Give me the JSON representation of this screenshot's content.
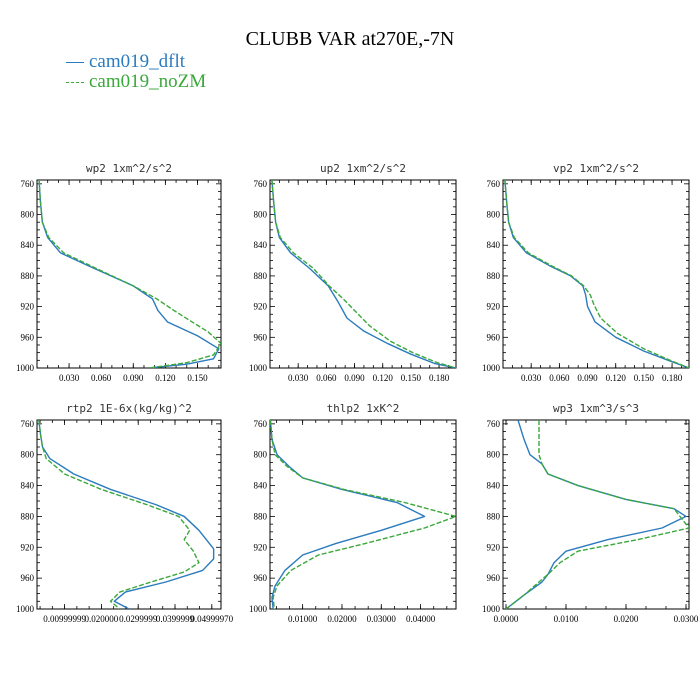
{
  "title": "CLUBB VAR at270E,-7N",
  "colors": {
    "dflt": "#2b7bbe",
    "noZM": "#3aa83a"
  },
  "legend": [
    {
      "label": "cam019_dflt",
      "color": "#2b7bbe",
      "dash": "solid"
    },
    {
      "label": "cam019_noZM",
      "color": "#3aa83a",
      "dash": "dashed"
    }
  ],
  "chart_data": [
    {
      "type": "line",
      "title": "wp2  1xm^2/s^2",
      "xlim": [
        0,
        0.172
      ],
      "ylim": [
        1000,
        755
      ],
      "y_reversed": true,
      "xticks": [
        0.03,
        0.06,
        0.09,
        0.12,
        0.15
      ],
      "xtick_labels": [
        "0.030",
        "0.060",
        "0.090",
        "0.120",
        "0.150"
      ],
      "yticks": [
        760,
        800,
        840,
        880,
        920,
        960,
        1000
      ],
      "ytick_labels": [
        "760",
        "800",
        "840",
        "880",
        "920",
        "960",
        "1000"
      ],
      "series": [
        {
          "color_key": "dflt",
          "dash": false,
          "points": [
            [
              0.002,
              755
            ],
            [
              0.003,
              780
            ],
            [
              0.005,
              810
            ],
            [
              0.01,
              830
            ],
            [
              0.022,
              850
            ],
            [
              0.05,
              868
            ],
            [
              0.09,
              893
            ],
            [
              0.108,
              910
            ],
            [
              0.113,
              925
            ],
            [
              0.122,
              940
            ],
            [
              0.15,
              958
            ],
            [
              0.17,
              975
            ],
            [
              0.165,
              988
            ],
            [
              0.14,
              995
            ],
            [
              0.105,
              1000
            ]
          ]
        },
        {
          "color_key": "noZM",
          "dash": true,
          "points": [
            [
              0.002,
              755
            ],
            [
              0.003,
              780
            ],
            [
              0.005,
              810
            ],
            [
              0.011,
              830
            ],
            [
              0.025,
              850
            ],
            [
              0.055,
              870
            ],
            [
              0.09,
              893
            ],
            [
              0.112,
              910
            ],
            [
              0.128,
              925
            ],
            [
              0.145,
              940
            ],
            [
              0.16,
              953
            ],
            [
              0.172,
              968
            ],
            [
              0.165,
              983
            ],
            [
              0.14,
              993
            ],
            [
              0.105,
              1000
            ]
          ]
        }
      ]
    },
    {
      "type": "line",
      "title": "up2  1xm^2/s^2",
      "xlim": [
        0,
        0.198
      ],
      "ylim": [
        1000,
        755
      ],
      "y_reversed": true,
      "xticks": [
        0.03,
        0.06,
        0.09,
        0.12,
        0.15,
        0.18
      ],
      "xtick_labels": [
        "0.030",
        "0.060",
        "0.090",
        "0.120",
        "0.150",
        "0.180"
      ],
      "yticks": [
        760,
        800,
        840,
        880,
        920,
        960,
        1000
      ],
      "ytick_labels": [
        "760",
        "800",
        "840",
        "880",
        "920",
        "960",
        "1000"
      ],
      "series": [
        {
          "color_key": "dflt",
          "dash": false,
          "points": [
            [
              0.002,
              755
            ],
            [
              0.004,
              785
            ],
            [
              0.006,
              810
            ],
            [
              0.01,
              830
            ],
            [
              0.022,
              850
            ],
            [
              0.042,
              870
            ],
            [
              0.062,
              893
            ],
            [
              0.073,
              915
            ],
            [
              0.082,
              935
            ],
            [
              0.1,
              952
            ],
            [
              0.125,
              968
            ],
            [
              0.15,
              982
            ],
            [
              0.175,
              994
            ],
            [
              0.198,
              1000
            ]
          ]
        },
        {
          "color_key": "noZM",
          "dash": true,
          "points": [
            [
              0.002,
              755
            ],
            [
              0.004,
              785
            ],
            [
              0.006,
              810
            ],
            [
              0.011,
              830
            ],
            [
              0.025,
              850
            ],
            [
              0.046,
              870
            ],
            [
              0.063,
              893
            ],
            [
              0.078,
              910
            ],
            [
              0.09,
              925
            ],
            [
              0.106,
              945
            ],
            [
              0.128,
              965
            ],
            [
              0.152,
              980
            ],
            [
              0.178,
              993
            ],
            [
              0.198,
              1000
            ]
          ]
        }
      ]
    },
    {
      "type": "line",
      "title": "vp2  1xm^2/s^2",
      "xlim": [
        0,
        0.198
      ],
      "ylim": [
        1000,
        755
      ],
      "y_reversed": true,
      "xticks": [
        0.03,
        0.06,
        0.09,
        0.12,
        0.15,
        0.18
      ],
      "xtick_labels": [
        "0.030",
        "0.060",
        "0.090",
        "0.120",
        "0.150",
        "0.180"
      ],
      "yticks": [
        760,
        800,
        840,
        880,
        920,
        960,
        1000
      ],
      "ytick_labels": [
        "760",
        "800",
        "840",
        "880",
        "920",
        "960",
        "1000"
      ],
      "series": [
        {
          "color_key": "dflt",
          "dash": false,
          "points": [
            [
              0.002,
              755
            ],
            [
              0.004,
              785
            ],
            [
              0.006,
              810
            ],
            [
              0.011,
              830
            ],
            [
              0.025,
              850
            ],
            [
              0.05,
              867
            ],
            [
              0.072,
              880
            ],
            [
              0.085,
              893
            ],
            [
              0.088,
              905
            ],
            [
              0.09,
              920
            ],
            [
              0.098,
              940
            ],
            [
              0.12,
              960
            ],
            [
              0.15,
              978
            ],
            [
              0.178,
              991
            ],
            [
              0.198,
              1000
            ]
          ]
        },
        {
          "color_key": "noZM",
          "dash": true,
          "points": [
            [
              0.002,
              755
            ],
            [
              0.004,
              785
            ],
            [
              0.006,
              810
            ],
            [
              0.012,
              830
            ],
            [
              0.027,
              850
            ],
            [
              0.052,
              867
            ],
            [
              0.073,
              880
            ],
            [
              0.086,
              893
            ],
            [
              0.093,
              905
            ],
            [
              0.097,
              918
            ],
            [
              0.104,
              935
            ],
            [
              0.122,
              955
            ],
            [
              0.15,
              975
            ],
            [
              0.178,
              990
            ],
            [
              0.198,
              1000
            ]
          ]
        }
      ]
    },
    {
      "type": "line",
      "title": "rtp2  1E-6x(kg/kg)^2",
      "xlim": [
        0,
        1.0
      ],
      "ylim": [
        1000,
        755
      ],
      "y_reversed": true,
      "xticks": [
        0.15,
        0.35,
        0.55,
        0.75,
        0.95
      ],
      "xtick_labels": [
        "0.00999999",
        "0.020000",
        "0.0299999",
        "0.0399999",
        "0.04999970"
      ],
      "yticks": [
        760,
        800,
        840,
        880,
        920,
        960,
        1000
      ],
      "ytick_labels": [
        "760",
        "800",
        "840",
        "880",
        "920",
        "960",
        "1000"
      ],
      "series": [
        {
          "color_key": "dflt",
          "dash": false,
          "points": [
            [
              0.01,
              755
            ],
            [
              0.02,
              775
            ],
            [
              0.03,
              790
            ],
            [
              0.07,
              805
            ],
            [
              0.2,
              825
            ],
            [
              0.4,
              845
            ],
            [
              0.65,
              865
            ],
            [
              0.8,
              880
            ],
            [
              0.88,
              898
            ],
            [
              0.92,
              910
            ],
            [
              0.96,
              922
            ],
            [
              0.96,
              935
            ],
            [
              0.9,
              950
            ],
            [
              0.7,
              965
            ],
            [
              0.48,
              978
            ],
            [
              0.42,
              990
            ],
            [
              0.5,
              1000
            ]
          ]
        },
        {
          "color_key": "noZM",
          "dash": true,
          "points": [
            [
              0.01,
              755
            ],
            [
              0.02,
              775
            ],
            [
              0.03,
              790
            ],
            [
              0.05,
              805
            ],
            [
              0.15,
              825
            ],
            [
              0.35,
              845
            ],
            [
              0.6,
              865
            ],
            [
              0.77,
              880
            ],
            [
              0.83,
              898
            ],
            [
              0.8,
              910
            ],
            [
              0.85,
              925
            ],
            [
              0.88,
              940
            ],
            [
              0.8,
              952
            ],
            [
              0.62,
              965
            ],
            [
              0.45,
              978
            ],
            [
              0.4,
              990
            ],
            [
              0.45,
              1000
            ]
          ]
        }
      ]
    },
    {
      "type": "line",
      "title": "thlp2  1xK^2",
      "xlim": [
        0.0017,
        0.049
      ],
      "ylim": [
        1000,
        755
      ],
      "y_reversed": true,
      "xticks": [
        0.01,
        0.02,
        0.03,
        0.04
      ],
      "xtick_labels": [
        "0.01000",
        "0.02000",
        "0.03000",
        "0.04000"
      ],
      "yticks": [
        760,
        800,
        840,
        880,
        920,
        960,
        1000
      ],
      "ytick_labels": [
        "760",
        "800",
        "840",
        "880",
        "920",
        "960",
        "1000"
      ],
      "series": [
        {
          "color_key": "dflt",
          "dash": false,
          "points": [
            [
              0.0018,
              755
            ],
            [
              0.0022,
              780
            ],
            [
              0.0035,
              800
            ],
            [
              0.0065,
              815
            ],
            [
              0.01,
              830
            ],
            [
              0.02,
              845
            ],
            [
              0.034,
              862
            ],
            [
              0.041,
              880
            ],
            [
              0.03,
              898
            ],
            [
              0.0185,
              915
            ],
            [
              0.01,
              930
            ],
            [
              0.0055,
              950
            ],
            [
              0.003,
              970
            ],
            [
              0.0022,
              985
            ],
            [
              0.0025,
              1000
            ]
          ]
        },
        {
          "color_key": "noZM",
          "dash": true,
          "points": [
            [
              0.0018,
              755
            ],
            [
              0.0022,
              780
            ],
            [
              0.003,
              800
            ],
            [
              0.006,
              815
            ],
            [
              0.01,
              830
            ],
            [
              0.0205,
              845
            ],
            [
              0.036,
              862
            ],
            [
              0.049,
              880
            ],
            [
              0.041,
              895
            ],
            [
              0.026,
              915
            ],
            [
              0.014,
              930
            ],
            [
              0.007,
              950
            ],
            [
              0.0035,
              970
            ],
            [
              0.0025,
              985
            ],
            [
              0.0028,
              1000
            ]
          ]
        }
      ]
    },
    {
      "type": "line",
      "title": "wp3  1xm^3/s^3",
      "xlim": [
        -0.0005,
        0.0305
      ],
      "ylim": [
        1000,
        755
      ],
      "y_reversed": true,
      "xticks": [
        0.0,
        0.01,
        0.02,
        0.03
      ],
      "xtick_labels": [
        "0.0000",
        "0.0100",
        "0.0200",
        "0.0300"
      ],
      "yticks": [
        760,
        800,
        840,
        880,
        920,
        960,
        1000
      ],
      "ytick_labels": [
        "760",
        "800",
        "840",
        "880",
        "920",
        "960",
        "1000"
      ],
      "series": [
        {
          "color_key": "dflt",
          "dash": false,
          "points": [
            [
              0.002,
              755
            ],
            [
              0.003,
              780
            ],
            [
              0.004,
              800
            ],
            [
              0.006,
              812
            ],
            [
              0.007,
              825
            ],
            [
              0.012,
              840
            ],
            [
              0.02,
              858
            ],
            [
              0.028,
              870
            ],
            [
              0.03,
              880
            ],
            [
              0.026,
              895
            ],
            [
              0.017,
              910
            ],
            [
              0.01,
              925
            ],
            [
              0.008,
              940
            ],
            [
              0.007,
              955
            ],
            [
              0.006,
              965
            ],
            [
              0.003,
              982
            ],
            [
              0.0,
              1000
            ]
          ]
        },
        {
          "color_key": "noZM",
          "dash": true,
          "points": [
            [
              0.0055,
              755
            ],
            [
              0.0055,
              780
            ],
            [
              0.0055,
              800
            ],
            [
              0.006,
              812
            ],
            [
              0.007,
              825
            ],
            [
              0.012,
              840
            ],
            [
              0.02,
              858
            ],
            [
              0.028,
              870
            ],
            [
              0.029,
              880
            ],
            [
              0.0305,
              895
            ],
            [
              0.022,
              910
            ],
            [
              0.012,
              925
            ],
            [
              0.009,
              940
            ],
            [
              0.007,
              955
            ],
            [
              0.0055,
              965
            ],
            [
              0.003,
              982
            ],
            [
              0.0,
              1000
            ]
          ]
        }
      ]
    }
  ]
}
